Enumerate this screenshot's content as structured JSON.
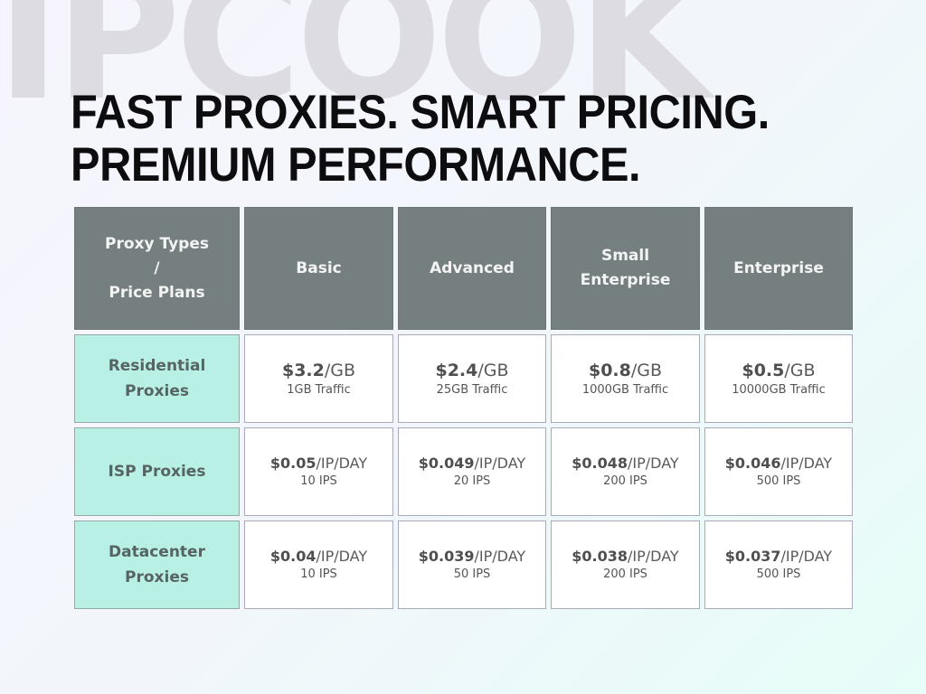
{
  "brand": {
    "watermark": "IPCOOK"
  },
  "headline": {
    "line1": "FAST PROXIES. SMART PRICING.",
    "line2": "PREMIUM PERFORMANCE."
  },
  "colors": {
    "header_bg": "#767f80",
    "type_bg": "#b8f0e5",
    "cell_bg": "#ffffff",
    "headline": "#0d0d0f"
  },
  "table": {
    "corner": {
      "line1": "Proxy Types",
      "line2": "/",
      "line3": "Price Plans"
    },
    "columns": [
      {
        "line1": "Basic",
        "line2": ""
      },
      {
        "line1": "Advanced",
        "line2": ""
      },
      {
        "line1": "Small",
        "line2": "Enterprise"
      },
      {
        "line1": "Enterprise",
        "line2": ""
      }
    ],
    "rows": [
      {
        "type": {
          "line1": "Residential",
          "line2": "Proxies"
        },
        "cells": [
          {
            "amount": "$3.2",
            "unit": "/GB",
            "detail": "1GB Traffic"
          },
          {
            "amount": "$2.4",
            "unit": "/GB",
            "detail": "25GB Traffic"
          },
          {
            "amount": "$0.8",
            "unit": "/GB",
            "detail": "1000GB Traffic"
          },
          {
            "amount": "$0.5",
            "unit": "/GB",
            "detail": "10000GB Traffic"
          }
        ]
      },
      {
        "type": {
          "line1": "ISP Proxies",
          "line2": ""
        },
        "cells": [
          {
            "amount": "$0.05",
            "unit": "/IP/DAY",
            "detail": "10 IPS"
          },
          {
            "amount": "$0.049",
            "unit": "/IP/DAY",
            "detail": "20 IPS"
          },
          {
            "amount": "$0.048",
            "unit": "/IP/DAY",
            "detail": "200 IPS"
          },
          {
            "amount": "$0.046",
            "unit": "/IP/DAY",
            "detail": "500 IPS"
          }
        ]
      },
      {
        "type": {
          "line1": "Datacenter",
          "line2": "Proxies"
        },
        "cells": [
          {
            "amount": "$0.04",
            "unit": "/IP/DAY",
            "detail": "10 IPS"
          },
          {
            "amount": "$0.039",
            "unit": "/IP/DAY",
            "detail": "50 IPS"
          },
          {
            "amount": "$0.038",
            "unit": "/IP/DAY",
            "detail": "200 IPS"
          },
          {
            "amount": "$0.037",
            "unit": "/IP/DAY",
            "detail": "500 IPS"
          }
        ]
      }
    ]
  }
}
